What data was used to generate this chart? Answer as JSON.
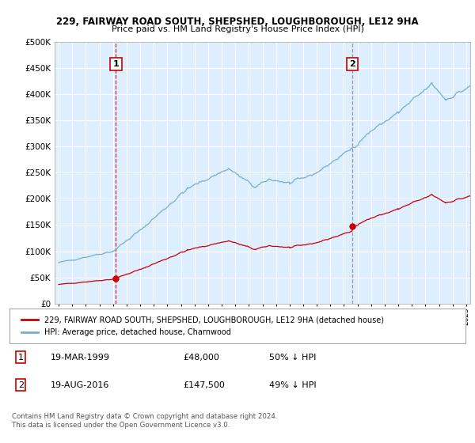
{
  "title1": "229, FAIRWAY ROAD SOUTH, SHEPSHED, LOUGHBOROUGH, LE12 9HA",
  "title2": "Price paid vs. HM Land Registry's House Price Index (HPI)",
  "legend_label_red": "229, FAIRWAY ROAD SOUTH, SHEPSHED, LOUGHBOROUGH, LE12 9HA (detached house)",
  "legend_label_blue": "HPI: Average price, detached house, Charnwood",
  "footer1": "Contains HM Land Registry data © Crown copyright and database right 2024.",
  "footer2": "This data is licensed under the Open Government Licence v3.0.",
  "point1_date": "19-MAR-1999",
  "point1_price": "£48,000",
  "point1_hpi": "50% ↓ HPI",
  "point2_date": "19-AUG-2016",
  "point2_price": "£147,500",
  "point2_hpi": "49% ↓ HPI",
  "point1_x": 1999.21,
  "point1_y": 48000,
  "point2_x": 2016.63,
  "point2_y": 147500,
  "color_red": "#cc0000",
  "color_blue": "#7aaccd",
  "color_bg": "#ddeeff",
  "color_grid": "#ffffff",
  "ylim": [
    0,
    500000
  ],
  "xlim": [
    1994.7,
    2025.3
  ]
}
